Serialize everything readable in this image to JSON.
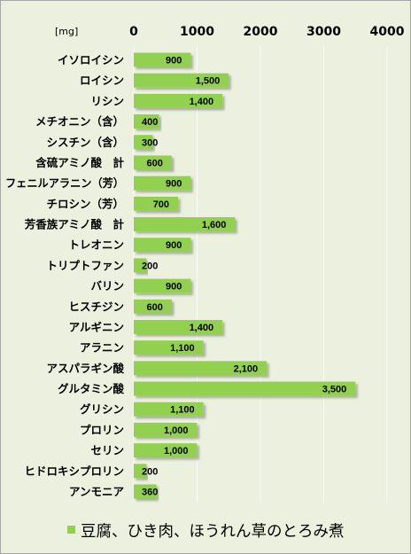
{
  "chart_data": {
    "type": "bar",
    "orientation": "horizontal",
    "unit_label": "[mg]",
    "xlim": [
      0,
      4000
    ],
    "ticks": [
      0,
      1000,
      2000,
      3000,
      4000
    ],
    "grid": true,
    "legend_position": "bottom",
    "categories": [
      "イソロイシン",
      "ロイシン",
      "リシン",
      "メチオニン（含）",
      "シスチン（含）",
      "含硫アミノ酸　計",
      "フェニルアラニン（芳）",
      "チロシン（芳）",
      "芳香族アミノ酸　計",
      "トレオニン",
      "トリプトファン",
      "バリン",
      "ヒスチジン",
      "アルギニン",
      "アラニン",
      "アスパラギン酸",
      "グルタミン酸",
      "グリシン",
      "プロリン",
      "セリン",
      "ヒドロキシプロリン",
      "アンモニア"
    ],
    "series": [
      {
        "name": "豆腐、ひき肉、ほうれん草のとろみ煮",
        "values": [
          900,
          1500,
          1400,
          400,
          300,
          600,
          900,
          700,
          1600,
          900,
          200,
          900,
          600,
          1400,
          1100,
          2100,
          3500,
          1100,
          1000,
          1000,
          200,
          360
        ],
        "labels": [
          "900",
          "1,500",
          "1,400",
          "400",
          "300",
          "600",
          "900",
          "700",
          "1,600",
          "900",
          "200",
          "900",
          "600",
          "1,400",
          "1,100",
          "2,100",
          "3,500",
          "1,100",
          "1,000",
          "1,000",
          "200",
          "360"
        ]
      }
    ]
  },
  "colors": {
    "bar": "#92D050",
    "background": "#EBF1DE",
    "border": "#A6A6A6"
  }
}
